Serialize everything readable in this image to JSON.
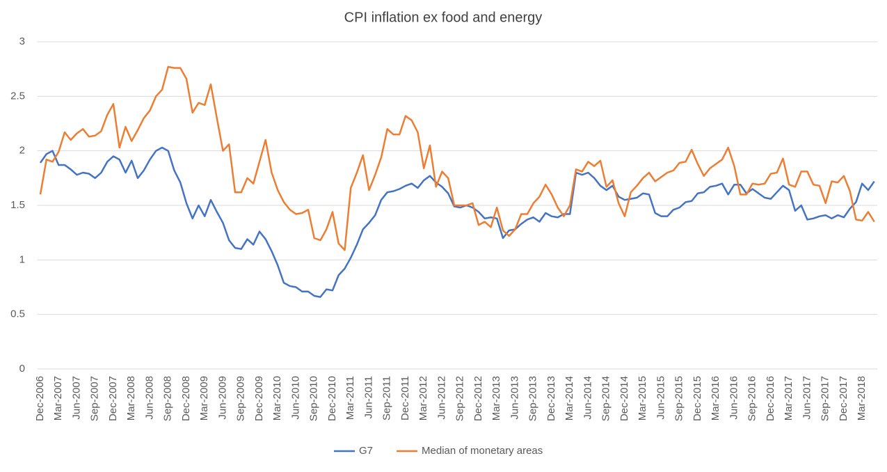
{
  "chart_data": {
    "type": "line",
    "title": "CPI inflation ex food and energy",
    "categories": [
      "Dec-2006",
      null,
      null,
      "Mar-2007",
      null,
      null,
      "Jun-2007",
      null,
      null,
      "Sep-2007",
      null,
      null,
      "Dec-2007",
      null,
      null,
      "Mar-2008",
      null,
      null,
      "Jun-2008",
      null,
      null,
      "Sep-2008",
      null,
      null,
      "Dec-2008",
      null,
      null,
      "Mar-2009",
      null,
      null,
      "Jun-2009",
      null,
      null,
      "Sep-2009",
      null,
      null,
      "Dec-2009",
      null,
      null,
      "Mar-2010",
      null,
      null,
      "Jun-2010",
      null,
      null,
      "Sep-2010",
      null,
      null,
      "Dec-2010",
      null,
      null,
      "Mar-2011",
      null,
      null,
      "Jun-2011",
      null,
      null,
      "Sep-2011",
      null,
      null,
      "Dec-2011",
      null,
      null,
      "Mar-2012",
      null,
      null,
      "Jun-2012",
      null,
      null,
      "Sep-2012",
      null,
      null,
      "Dec-2012",
      null,
      null,
      "Mar-2013",
      null,
      null,
      "Jun-2013",
      null,
      null,
      "Sep-2013",
      null,
      null,
      "Dec-2013",
      null,
      null,
      "Mar-2014",
      null,
      null,
      "Jun-2014",
      null,
      null,
      "Sep-2014",
      null,
      null,
      "Dec-2014",
      null,
      null,
      "Mar-2015",
      null,
      null,
      "Jun-2015",
      null,
      null,
      "Sep-2015",
      null,
      null,
      "Dec-2015",
      null,
      null,
      "Mar-2016",
      null,
      null,
      "Jun-2016",
      null,
      null,
      "Sep-2016",
      null,
      null,
      "Dec-2016",
      null,
      null,
      "Mar-2017",
      null,
      null,
      "Jun-2017",
      null,
      null,
      "Sep-2017",
      null,
      null,
      "Dec-2017",
      null,
      null,
      "Mar-2018",
      null,
      null
    ],
    "series": [
      {
        "name": "G7",
        "color": "#4472c4",
        "values": [
          1.89,
          1.97,
          2.0,
          1.87,
          1.87,
          1.83,
          1.78,
          1.8,
          1.79,
          1.75,
          1.8,
          1.9,
          1.95,
          1.92,
          1.8,
          1.91,
          1.75,
          1.82,
          1.92,
          2.0,
          2.03,
          2.0,
          1.82,
          1.71,
          1.52,
          1.38,
          1.5,
          1.4,
          1.55,
          1.44,
          1.34,
          1.18,
          1.11,
          1.1,
          1.19,
          1.14,
          1.26,
          1.19,
          1.08,
          0.95,
          0.79,
          0.76,
          0.75,
          0.71,
          0.71,
          0.67,
          0.66,
          0.73,
          0.72,
          0.86,
          0.92,
          1.02,
          1.14,
          1.28,
          1.34,
          1.41,
          1.55,
          1.62,
          1.63,
          1.65,
          1.68,
          1.7,
          1.66,
          1.73,
          1.77,
          1.71,
          1.67,
          1.61,
          1.49,
          1.48,
          1.5,
          1.48,
          1.44,
          1.38,
          1.39,
          1.38,
          1.2,
          1.27,
          1.28,
          1.33,
          1.37,
          1.39,
          1.35,
          1.43,
          1.4,
          1.39,
          1.42,
          1.42,
          1.8,
          1.78,
          1.8,
          1.75,
          1.68,
          1.64,
          1.68,
          1.58,
          1.55,
          1.56,
          1.57,
          1.61,
          1.6,
          1.43,
          1.4,
          1.4,
          1.46,
          1.48,
          1.53,
          1.54,
          1.61,
          1.62,
          1.67,
          1.68,
          1.7,
          1.6,
          1.69,
          1.69,
          1.61,
          1.65,
          1.61,
          1.57,
          1.56,
          1.62,
          1.68,
          1.64,
          1.45,
          1.5,
          1.37,
          1.38,
          1.4,
          1.41,
          1.38,
          1.41,
          1.39,
          1.47,
          1.53,
          1.7,
          1.64,
          1.72
        ]
      },
      {
        "name": "Median of monetary areas",
        "color": "#ed7d31",
        "values": [
          1.6,
          1.92,
          1.9,
          1.99,
          2.17,
          2.1,
          2.16,
          2.2,
          2.13,
          2.14,
          2.18,
          2.33,
          2.43,
          2.03,
          2.22,
          2.09,
          2.19,
          2.3,
          2.37,
          2.5,
          2.56,
          2.77,
          2.76,
          2.76,
          2.66,
          2.35,
          2.44,
          2.42,
          2.61,
          2.3,
          2.0,
          2.06,
          1.62,
          1.62,
          1.75,
          1.7,
          1.9,
          2.1,
          1.8,
          1.64,
          1.53,
          1.46,
          1.42,
          1.43,
          1.46,
          1.2,
          1.18,
          1.28,
          1.44,
          1.15,
          1.09,
          1.66,
          1.8,
          1.96,
          1.64,
          1.78,
          1.94,
          2.2,
          2.15,
          2.15,
          2.32,
          2.28,
          2.17,
          1.84,
          2.05,
          1.67,
          1.81,
          1.75,
          1.5,
          1.5,
          1.5,
          1.52,
          1.32,
          1.35,
          1.3,
          1.48,
          1.27,
          1.22,
          1.28,
          1.42,
          1.42,
          1.52,
          1.58,
          1.69,
          1.6,
          1.48,
          1.4,
          1.5,
          1.83,
          1.81,
          1.9,
          1.86,
          1.91,
          1.67,
          1.73,
          1.52,
          1.4,
          1.62,
          1.68,
          1.75,
          1.8,
          1.72,
          1.76,
          1.8,
          1.82,
          1.89,
          1.9,
          2.01,
          1.88,
          1.77,
          1.84,
          1.88,
          1.92,
          2.03,
          1.86,
          1.6,
          1.6,
          1.7,
          1.69,
          1.7,
          1.79,
          1.8,
          1.93,
          1.69,
          1.67,
          1.81,
          1.81,
          1.69,
          1.68,
          1.52,
          1.72,
          1.71,
          1.77,
          1.63,
          1.37,
          1.36,
          1.44,
          1.35
        ]
      }
    ],
    "ylim": [
      0,
      3
    ],
    "yticks": [
      0,
      0.5,
      1,
      1.5,
      2,
      2.5,
      3
    ],
    "grid": true,
    "legend": "bottom"
  }
}
